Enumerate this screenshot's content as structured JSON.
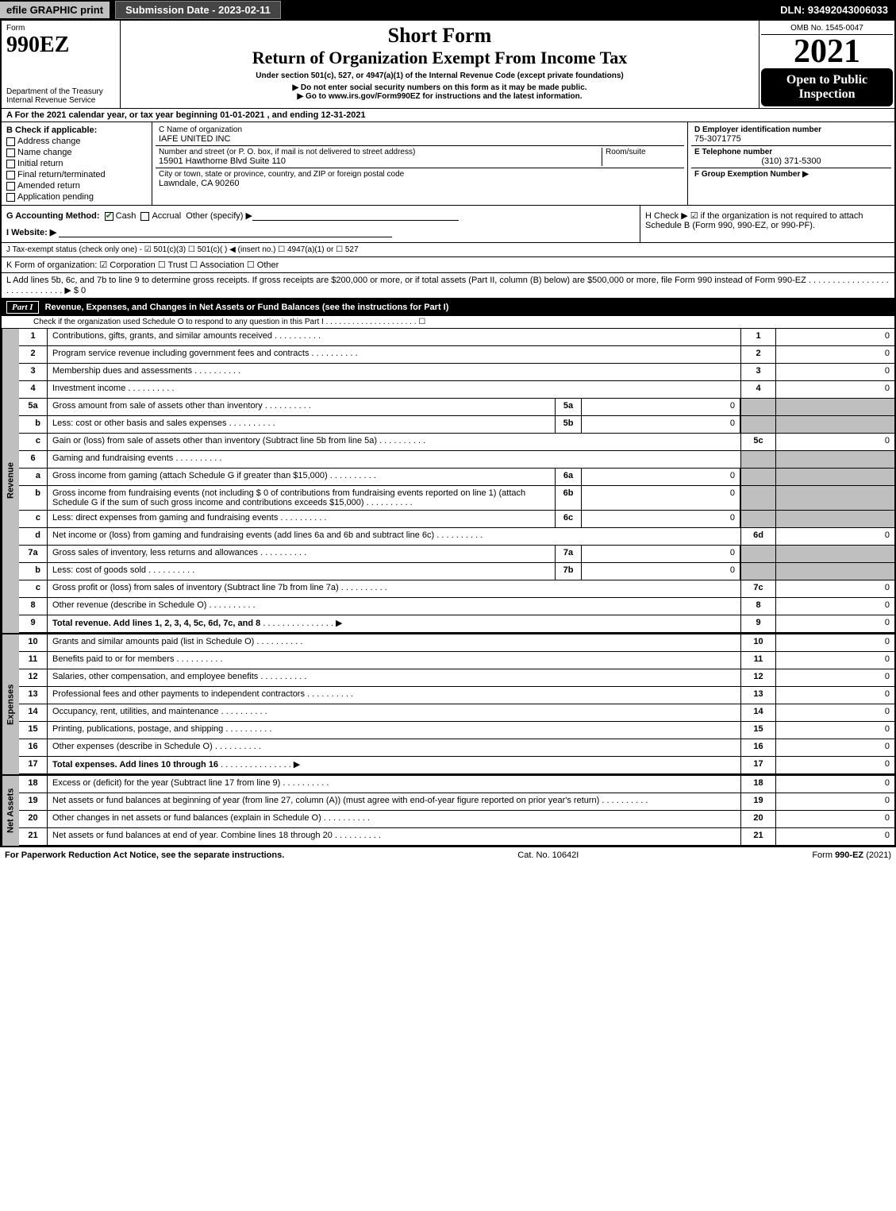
{
  "topbar": {
    "efile": "efile GRAPHIC print",
    "submission": "Submission Date - 2023-02-11",
    "dln": "DLN: 93492043006033"
  },
  "header": {
    "form_word": "Form",
    "form_no": "990EZ",
    "dept1": "Department of the Treasury",
    "dept2": "Internal Revenue Service",
    "title_short": "Short Form",
    "title_return": "Return of Organization Exempt From Income Tax",
    "subtitle": "Under section 501(c), 527, or 4947(a)(1) of the Internal Revenue Code (except private foundations)",
    "note1": "▶ Do not enter social security numbers on this form as it may be made public.",
    "note2": "▶ Go to www.irs.gov/Form990EZ for instructions and the latest information.",
    "omb": "OMB No. 1545-0047",
    "year": "2021",
    "badge1": "Open to Public Inspection"
  },
  "sectionA": "A  For the 2021 calendar year, or tax year beginning 01-01-2021 , and ending 12-31-2021",
  "boxB": {
    "title": "B  Check if applicable:",
    "items": [
      "Address change",
      "Name change",
      "Initial return",
      "Final return/terminated",
      "Amended return",
      "Application pending"
    ]
  },
  "boxC": {
    "label_name": "C Name of organization",
    "name": "IAFE UNITED INC",
    "label_addr": "Number and street (or P. O. box, if mail is not delivered to street address)",
    "addr": "15901 Hawthorne Blvd Suite 110",
    "room_label": "Room/suite",
    "label_city": "City or town, state or province, country, and ZIP or foreign postal code",
    "city": "Lawndale, CA  90260"
  },
  "boxD": {
    "label": "D Employer identification number",
    "val": "75-3071775"
  },
  "boxE": {
    "label": "E Telephone number",
    "val": "(310) 371-5300"
  },
  "boxF": {
    "label": "F Group Exemption Number  ▶",
    "val": ""
  },
  "rowG": {
    "label": "G Accounting Method:",
    "cash": "Cash",
    "accrual": "Accrual",
    "other": "Other (specify) ▶"
  },
  "rowH": "H  Check ▶ ☑ if the organization is not required to attach Schedule B (Form 990, 990-EZ, or 990-PF).",
  "rowI": "I Website: ▶",
  "rowJ": "J Tax-exempt status (check only one) - ☑ 501(c)(3)  ☐ 501(c)(  ) ◀ (insert no.)  ☐ 4947(a)(1) or  ☐ 527",
  "rowK": "K Form of organization:  ☑ Corporation  ☐ Trust  ☐ Association  ☐ Other",
  "rowL": "L Add lines 5b, 6c, and 7b to line 9 to determine gross receipts. If gross receipts are $200,000 or more, or if total assets (Part II, column (B) below) are $500,000 or more, file Form 990 instead of Form 990-EZ  .  .  .  .  .  .  .  .  .  .  .  .  .  .  .  .  .  .  .  .  .  .  .  .  .  .  .  .  .  ▶ $ 0",
  "partI": {
    "tag": "Part I",
    "title": "Revenue, Expenses, and Changes in Net Assets or Fund Balances (see the instructions for Part I)",
    "checknote": "Check if the organization used Schedule O to respond to any question in this Part I .  .  .  .  .  .  .  .  .  .  .  .  .  .  .  .  .  .  .  .  .  ☐"
  },
  "vtabs": {
    "rev": "Revenue",
    "exp": "Expenses",
    "net": "Net Assets"
  },
  "lines": {
    "l1": {
      "n": "1",
      "d": "Contributions, gifts, grants, and similar amounts received",
      "rn": "1",
      "rv": "0"
    },
    "l2": {
      "n": "2",
      "d": "Program service revenue including government fees and contracts",
      "rn": "2",
      "rv": "0"
    },
    "l3": {
      "n": "3",
      "d": "Membership dues and assessments",
      "rn": "3",
      "rv": "0"
    },
    "l4": {
      "n": "4",
      "d": "Investment income",
      "rn": "4",
      "rv": "0"
    },
    "l5a": {
      "n": "5a",
      "d": "Gross amount from sale of assets other than inventory",
      "mn": "5a",
      "mv": "0"
    },
    "l5b": {
      "n": "b",
      "d": "Less: cost or other basis and sales expenses",
      "mn": "5b",
      "mv": "0"
    },
    "l5c": {
      "n": "c",
      "d": "Gain or (loss) from sale of assets other than inventory (Subtract line 5b from line 5a)",
      "rn": "5c",
      "rv": "0"
    },
    "l6": {
      "n": "6",
      "d": "Gaming and fundraising events"
    },
    "l6a": {
      "n": "a",
      "d": "Gross income from gaming (attach Schedule G if greater than $15,000)",
      "mn": "6a",
      "mv": "0"
    },
    "l6b": {
      "n": "b",
      "d": "Gross income from fundraising events (not including $  0  of contributions from fundraising events reported on line 1) (attach Schedule G if the sum of such gross income and contributions exceeds $15,000)",
      "mn": "6b",
      "mv": "0"
    },
    "l6c": {
      "n": "c",
      "d": "Less: direct expenses from gaming and fundraising events",
      "mn": "6c",
      "mv": "0"
    },
    "l6d": {
      "n": "d",
      "d": "Net income or (loss) from gaming and fundraising events (add lines 6a and 6b and subtract line 6c)",
      "rn": "6d",
      "rv": "0"
    },
    "l7a": {
      "n": "7a",
      "d": "Gross sales of inventory, less returns and allowances",
      "mn": "7a",
      "mv": "0"
    },
    "l7b": {
      "n": "b",
      "d": "Less: cost of goods sold",
      "mn": "7b",
      "mv": "0"
    },
    "l7c": {
      "n": "c",
      "d": "Gross profit or (loss) from sales of inventory (Subtract line 7b from line 7a)",
      "rn": "7c",
      "rv": "0"
    },
    "l8": {
      "n": "8",
      "d": "Other revenue (describe in Schedule O)",
      "rn": "8",
      "rv": "0"
    },
    "l9": {
      "n": "9",
      "d": "Total revenue. Add lines 1, 2, 3, 4, 5c, 6d, 7c, and 8",
      "rn": "9",
      "rv": "0",
      "arrow": true,
      "bold": true
    },
    "l10": {
      "n": "10",
      "d": "Grants and similar amounts paid (list in Schedule O)",
      "rn": "10",
      "rv": "0"
    },
    "l11": {
      "n": "11",
      "d": "Benefits paid to or for members",
      "rn": "11",
      "rv": "0"
    },
    "l12": {
      "n": "12",
      "d": "Salaries, other compensation, and employee benefits",
      "rn": "12",
      "rv": "0"
    },
    "l13": {
      "n": "13",
      "d": "Professional fees and other payments to independent contractors",
      "rn": "13",
      "rv": "0"
    },
    "l14": {
      "n": "14",
      "d": "Occupancy, rent, utilities, and maintenance",
      "rn": "14",
      "rv": "0"
    },
    "l15": {
      "n": "15",
      "d": "Printing, publications, postage, and shipping",
      "rn": "15",
      "rv": "0"
    },
    "l16": {
      "n": "16",
      "d": "Other expenses (describe in Schedule O)",
      "rn": "16",
      "rv": "0"
    },
    "l17": {
      "n": "17",
      "d": "Total expenses. Add lines 10 through 16",
      "rn": "17",
      "rv": "0",
      "arrow": true,
      "bold": true
    },
    "l18": {
      "n": "18",
      "d": "Excess or (deficit) for the year (Subtract line 17 from line 9)",
      "rn": "18",
      "rv": "0"
    },
    "l19": {
      "n": "19",
      "d": "Net assets or fund balances at beginning of year (from line 27, column (A)) (must agree with end-of-year figure reported on prior year's return)",
      "rn": "19",
      "rv": "0"
    },
    "l20": {
      "n": "20",
      "d": "Other changes in net assets or fund balances (explain in Schedule O)",
      "rn": "20",
      "rv": "0"
    },
    "l21": {
      "n": "21",
      "d": "Net assets or fund balances at end of year. Combine lines 18 through 20",
      "rn": "21",
      "rv": "0"
    }
  },
  "footer": {
    "left": "For Paperwork Reduction Act Notice, see the separate instructions.",
    "mid": "Cat. No. 10642I",
    "right": "Form 990-EZ (2021)"
  }
}
